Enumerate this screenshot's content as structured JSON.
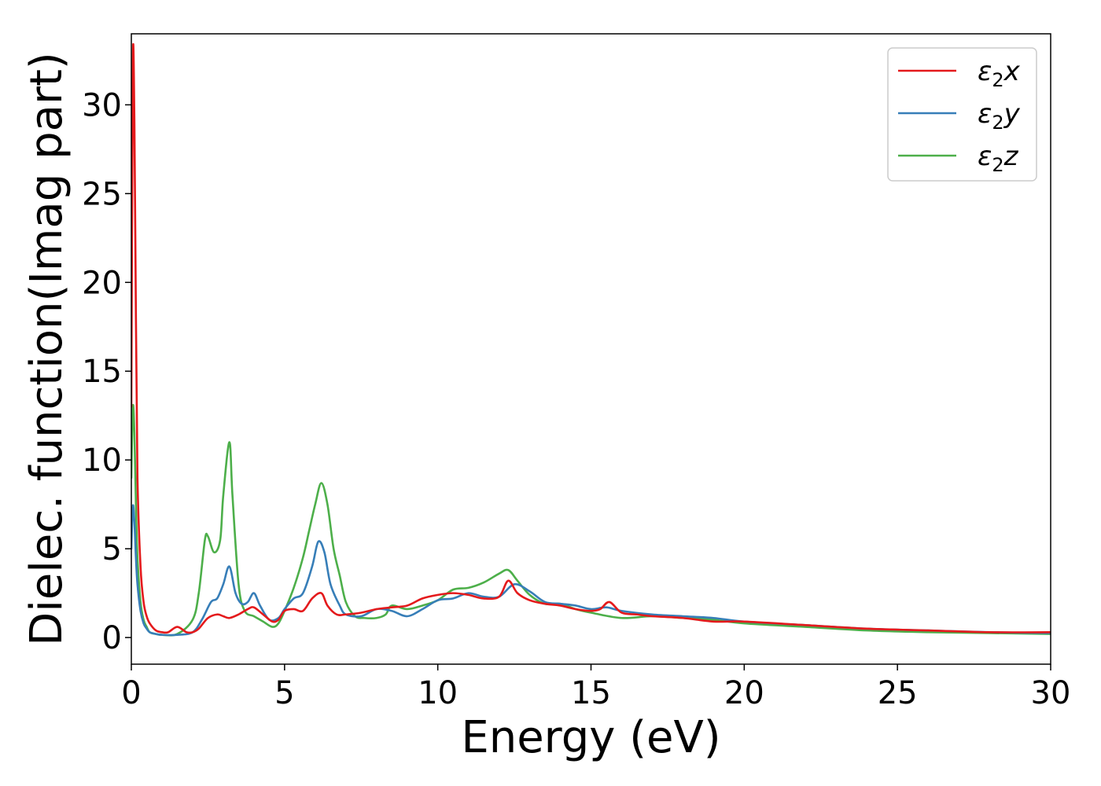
{
  "chart_data": {
    "type": "line",
    "title": "",
    "xlabel": "Energy (eV)",
    "ylabel": "Dielec. function(Imag part)",
    "xlim": [
      0,
      30
    ],
    "ylim": [
      -1.5,
      34.0
    ],
    "xticks": [
      0,
      5,
      10,
      15,
      20,
      25,
      30
    ],
    "yticks": [
      0,
      5,
      10,
      15,
      20,
      25,
      30
    ],
    "grid": false,
    "legend_position": "top-right",
    "series": [
      {
        "name": "ε₂x",
        "legend": {
          "base": "ε",
          "sub": "2",
          "tail": "x"
        },
        "color": "#e41a1c",
        "x": [
          0,
          0.05,
          0.1,
          0.15,
          0.2,
          0.3,
          0.4,
          0.5,
          0.6,
          0.8,
          1.0,
          1.2,
          1.5,
          1.8,
          2.0,
          2.2,
          2.5,
          2.8,
          3.0,
          3.2,
          3.5,
          3.8,
          4.0,
          4.3,
          4.6,
          4.8,
          5.0,
          5.3,
          5.6,
          5.9,
          6.2,
          6.4,
          6.7,
          7.0,
          7.5,
          8.0,
          8.5,
          9.0,
          9.5,
          10.0,
          10.5,
          11.0,
          11.5,
          12.0,
          12.3,
          12.6,
          13.0,
          13.5,
          14.0,
          14.5,
          15.0,
          15.3,
          15.6,
          16.0,
          16.5,
          17.0,
          18.0,
          19.0,
          20.0,
          22.0,
          24.0,
          26.0,
          28.0,
          30.0
        ],
        "y": [
          13.0,
          32.5,
          29.0,
          18.0,
          9.0,
          4.0,
          2.0,
          1.2,
          0.8,
          0.4,
          0.3,
          0.3,
          0.6,
          0.3,
          0.3,
          0.5,
          1.1,
          1.3,
          1.2,
          1.1,
          1.3,
          1.6,
          1.7,
          1.3,
          0.9,
          1.0,
          1.5,
          1.6,
          1.5,
          2.2,
          2.5,
          1.8,
          1.3,
          1.3,
          1.4,
          1.6,
          1.7,
          1.8,
          2.2,
          2.4,
          2.5,
          2.4,
          2.2,
          2.3,
          3.2,
          2.5,
          2.1,
          1.9,
          1.8,
          1.6,
          1.5,
          1.6,
          2.0,
          1.4,
          1.3,
          1.2,
          1.1,
          0.9,
          0.9,
          0.7,
          0.5,
          0.4,
          0.3,
          0.3
        ]
      },
      {
        "name": "ε₂y",
        "legend": {
          "base": "ε",
          "sub": "2",
          "tail": "y"
        },
        "color": "#377eb8",
        "x": [
          0,
          0.05,
          0.1,
          0.15,
          0.2,
          0.3,
          0.4,
          0.5,
          0.6,
          0.8,
          1.0,
          1.5,
          2.0,
          2.3,
          2.6,
          2.8,
          3.0,
          3.2,
          3.4,
          3.6,
          3.8,
          4.0,
          4.2,
          4.5,
          4.8,
          5.0,
          5.3,
          5.6,
          5.9,
          6.1,
          6.3,
          6.5,
          6.8,
          7.0,
          7.5,
          8.0,
          8.5,
          9.0,
          9.5,
          10.0,
          10.5,
          11.0,
          11.5,
          12.0,
          12.5,
          13.0,
          13.5,
          14.0,
          14.5,
          15.0,
          15.5,
          16.0,
          17.0,
          18.0,
          19.0,
          20.0,
          22.0,
          24.0,
          26.0,
          28.0,
          30.0
        ],
        "y": [
          5.0,
          7.4,
          6.5,
          4.5,
          3.0,
          1.5,
          0.8,
          0.5,
          0.3,
          0.2,
          0.15,
          0.15,
          0.3,
          1.0,
          2.0,
          2.2,
          3.0,
          4.0,
          2.5,
          1.9,
          2.0,
          2.5,
          1.8,
          1.0,
          1.1,
          1.6,
          2.2,
          2.5,
          4.0,
          5.4,
          4.8,
          3.0,
          1.8,
          1.3,
          1.2,
          1.6,
          1.5,
          1.2,
          1.6,
          2.1,
          2.2,
          2.5,
          2.3,
          2.3,
          3.0,
          2.6,
          2.0,
          1.9,
          1.8,
          1.6,
          1.7,
          1.5,
          1.3,
          1.2,
          1.1,
          0.9,
          0.7,
          0.5,
          0.4,
          0.3,
          0.25
        ]
      },
      {
        "name": "ε₂z",
        "legend": {
          "base": "ε",
          "sub": "2",
          "tail": "z"
        },
        "color": "#4daf4a",
        "x": [
          0,
          0.05,
          0.1,
          0.15,
          0.2,
          0.3,
          0.4,
          0.5,
          0.6,
          0.8,
          1.0,
          1.5,
          2.0,
          2.2,
          2.4,
          2.5,
          2.7,
          2.9,
          3.0,
          3.2,
          3.3,
          3.5,
          3.7,
          4.0,
          4.3,
          4.6,
          4.8,
          5.0,
          5.3,
          5.6,
          5.8,
          6.0,
          6.2,
          6.4,
          6.6,
          6.8,
          7.0,
          7.3,
          7.6,
          8.0,
          8.3,
          8.5,
          9.0,
          9.5,
          10.0,
          10.5,
          11.0,
          11.5,
          12.0,
          12.3,
          12.6,
          13.0,
          13.5,
          14.0,
          14.5,
          15.0,
          16.0,
          17.0,
          18.0,
          19.0,
          20.0,
          22.0,
          24.0,
          26.0,
          28.0,
          30.0
        ],
        "y": [
          9.0,
          13.0,
          11.5,
          7.5,
          4.5,
          2.0,
          1.0,
          0.6,
          0.3,
          0.2,
          0.15,
          0.2,
          1.0,
          2.5,
          5.5,
          5.7,
          4.8,
          5.5,
          8.0,
          11.0,
          8.0,
          3.0,
          1.5,
          1.2,
          0.9,
          0.6,
          0.8,
          1.5,
          2.8,
          4.5,
          6.0,
          7.5,
          8.7,
          7.5,
          5.0,
          3.5,
          2.0,
          1.2,
          1.1,
          1.1,
          1.3,
          1.8,
          1.6,
          1.8,
          2.1,
          2.7,
          2.8,
          3.1,
          3.6,
          3.8,
          3.2,
          2.4,
          1.9,
          1.9,
          1.6,
          1.4,
          1.1,
          1.2,
          1.1,
          1.0,
          0.8,
          0.6,
          0.4,
          0.3,
          0.25,
          0.2
        ]
      }
    ]
  }
}
